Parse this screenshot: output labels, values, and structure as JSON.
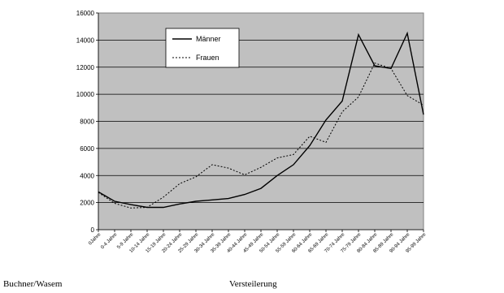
{
  "chart_data": {
    "type": "line",
    "categories": [
      "0Jahre",
      "0-4 Jahre",
      "5-9 Jahre",
      "10-14 Jahre",
      "15-19 Jahre",
      "20-24 Jahre",
      "25-29 Jahre",
      "30-34 Jahre",
      "35-39 Jahre",
      "40-44 Jahre",
      "45-49 Jahre",
      "50-54 Jahre",
      "55-59 Jahre",
      "60-64 Jahre",
      "65-69 Jahre",
      "70-74 Jahre",
      "75-79 Jahre",
      "80-84 Jahre",
      "85-89 Jahre",
      "90-94 Jahre",
      "95-99 Jahre"
    ],
    "series": [
      {
        "name": "Männer",
        "style": "solid",
        "values": [
          2800,
          2100,
          1850,
          1650,
          1650,
          1900,
          2100,
          2200,
          2300,
          2600,
          3050,
          4000,
          4800,
          6200,
          8100,
          9500,
          14400,
          12100,
          11900,
          14500,
          8500
        ]
      },
      {
        "name": "Frauen",
        "style": "dashed",
        "values": [
          2750,
          1950,
          1600,
          1650,
          2400,
          3400,
          3900,
          4800,
          4550,
          4050,
          4600,
          5300,
          5550,
          6900,
          6450,
          8700,
          9800,
          12300,
          11900,
          9900,
          9200
        ]
      }
    ],
    "ylim": [
      0,
      16000
    ],
    "yticks": [
      "0",
      "2000",
      "4000",
      "6000",
      "8000",
      "10000",
      "12000",
      "14000",
      "16000"
    ],
    "grid": true,
    "legend_position": "top-left",
    "plot_background": "#c0c0c0",
    "line_color": "#000000"
  },
  "footer": {
    "left": "Buchner/Wasem",
    "right": "Versteilerung"
  }
}
